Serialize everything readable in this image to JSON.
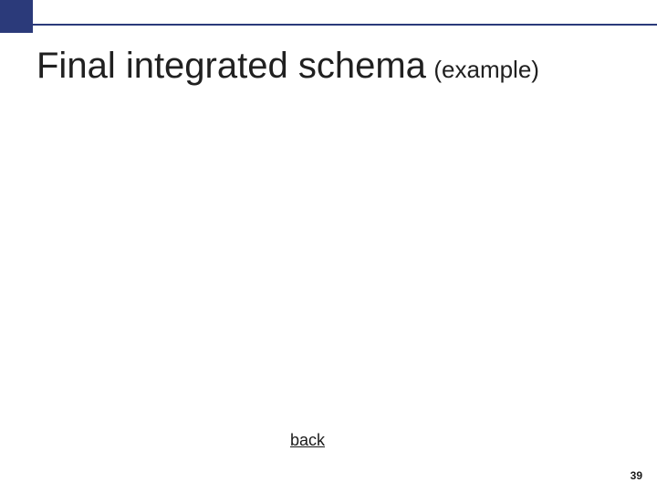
{
  "colors": {
    "accent": "#2b3a7a",
    "text": "#202020",
    "background": "#ffffff"
  },
  "header": {
    "title_main": "Final integrated schema",
    "title_sub": "(example)"
  },
  "footer": {
    "back_label": "back",
    "page_number": "39"
  }
}
